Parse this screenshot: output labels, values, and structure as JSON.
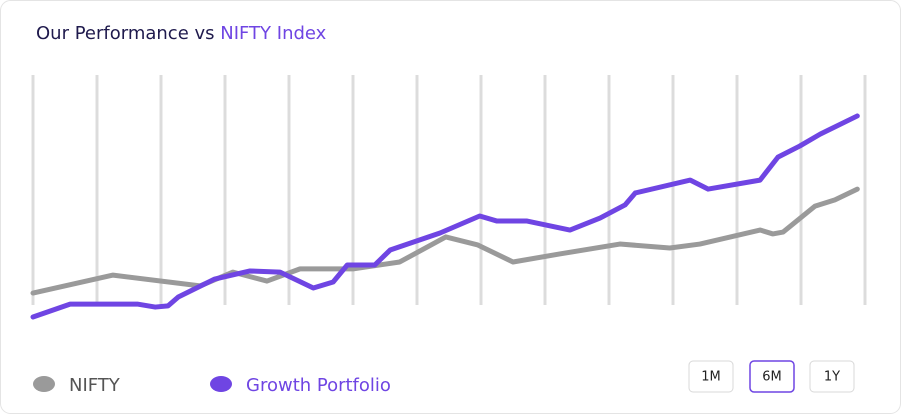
{
  "chart_data": {
    "type": "line",
    "title": "Our Performance vs ",
    "title_highlight": "NIFTY Index",
    "xlim": [
      0,
      13
    ],
    "ylim": [
      0,
      100
    ],
    "xgrid": [
      0,
      1,
      2,
      3,
      4,
      5,
      6,
      7,
      8,
      9,
      10,
      11,
      12,
      13
    ],
    "series": [
      {
        "name": "NIFTY",
        "color": "#9a9a9a",
        "x": [
          0,
          1.25,
          2.61,
          3.125,
          3.656,
          4.172,
          5,
          5.73,
          6.45,
          6.95,
          7.5,
          8.23,
          9.17,
          9.95,
          10.42,
          11.36,
          11.56,
          11.72,
          12.22,
          12.53,
          12.88
        ],
        "values": [
          5.2,
          13,
          8.3,
          14.3,
          10.4,
          15.7,
          15.7,
          18.7,
          29.6,
          26.1,
          18.7,
          22.2,
          26.5,
          24.8,
          26.5,
          32.6,
          30.9,
          31.7,
          43,
          45.7,
          50.4
        ]
      },
      {
        "name": "Growth Portfolio",
        "color": "#6f45e3",
        "x": [
          0,
          0.58,
          1.63,
          1.91,
          2.11,
          2.27,
          2.84,
          3.39,
          3.86,
          4.38,
          4.69,
          4.91,
          5.34,
          5.58,
          6.36,
          6.98,
          7.25,
          7.72,
          8.39,
          8.86,
          9.25,
          9.41,
          10.27,
          10.55,
          11.36,
          11.64,
          11.98,
          12.3,
          12.88
        ],
        "values": [
          -5.2,
          0.4,
          0.4,
          -0.9,
          -0.4,
          3.5,
          11.3,
          14.8,
          14.3,
          7.4,
          10,
          17.4,
          17.4,
          23.9,
          31.3,
          38.7,
          36.5,
          36.5,
          32.6,
          37.8,
          43.5,
          48.7,
          54.3,
          50.4,
          54.3,
          64.3,
          69.1,
          74.3,
          82.2
        ]
      }
    ],
    "ranges": [
      "1M",
      "6M",
      "1Y"
    ],
    "selected_range": 1
  }
}
